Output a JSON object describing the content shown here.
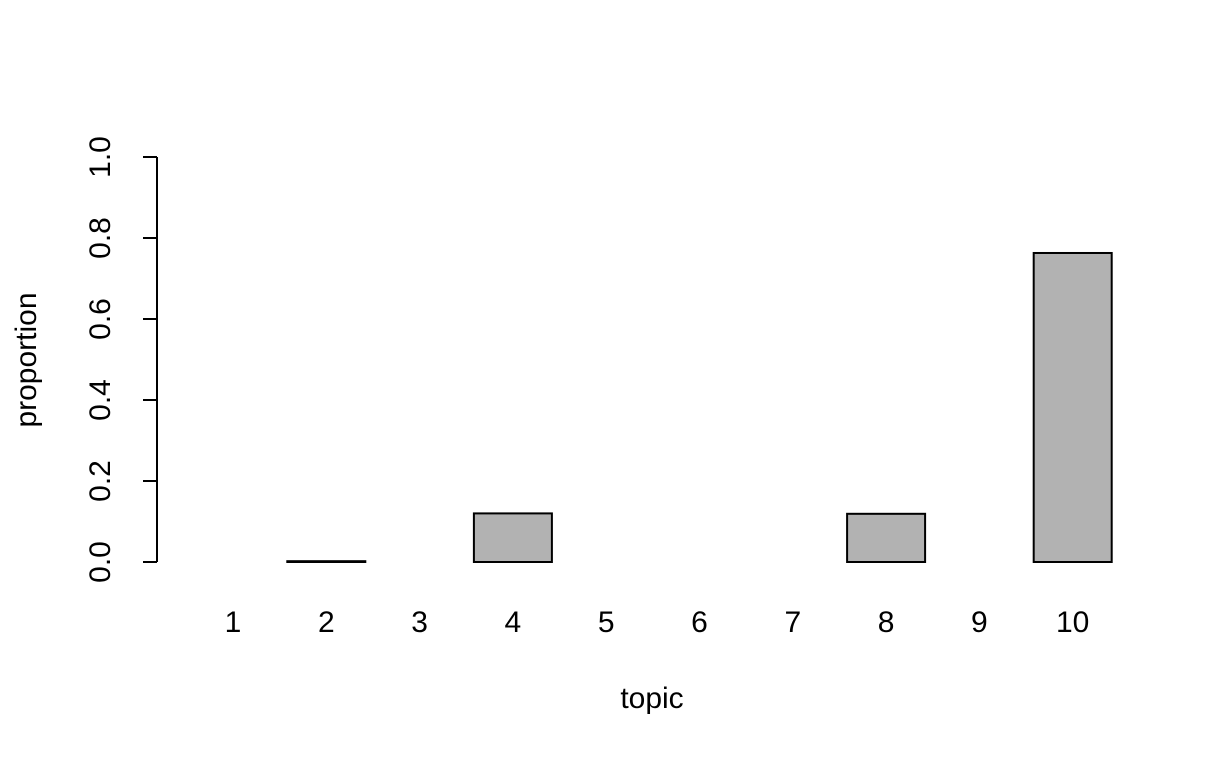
{
  "chart_data": {
    "type": "bar",
    "title": "",
    "xlabel": "topic",
    "ylabel": "proportion",
    "categories": [
      "1",
      "2",
      "3",
      "4",
      "5",
      "6",
      "7",
      "8",
      "9",
      "10"
    ],
    "values": [
      0.0,
      0.002,
      0.0,
      0.12,
      0.0,
      0.0,
      0.0,
      0.119,
      0.0,
      0.763
    ],
    "ylim": [
      0,
      1
    ],
    "yticks": [
      "0.0",
      "0.2",
      "0.4",
      "0.6",
      "0.8",
      "1.0"
    ],
    "grid": false,
    "bar_color": "#b2b2b2"
  }
}
